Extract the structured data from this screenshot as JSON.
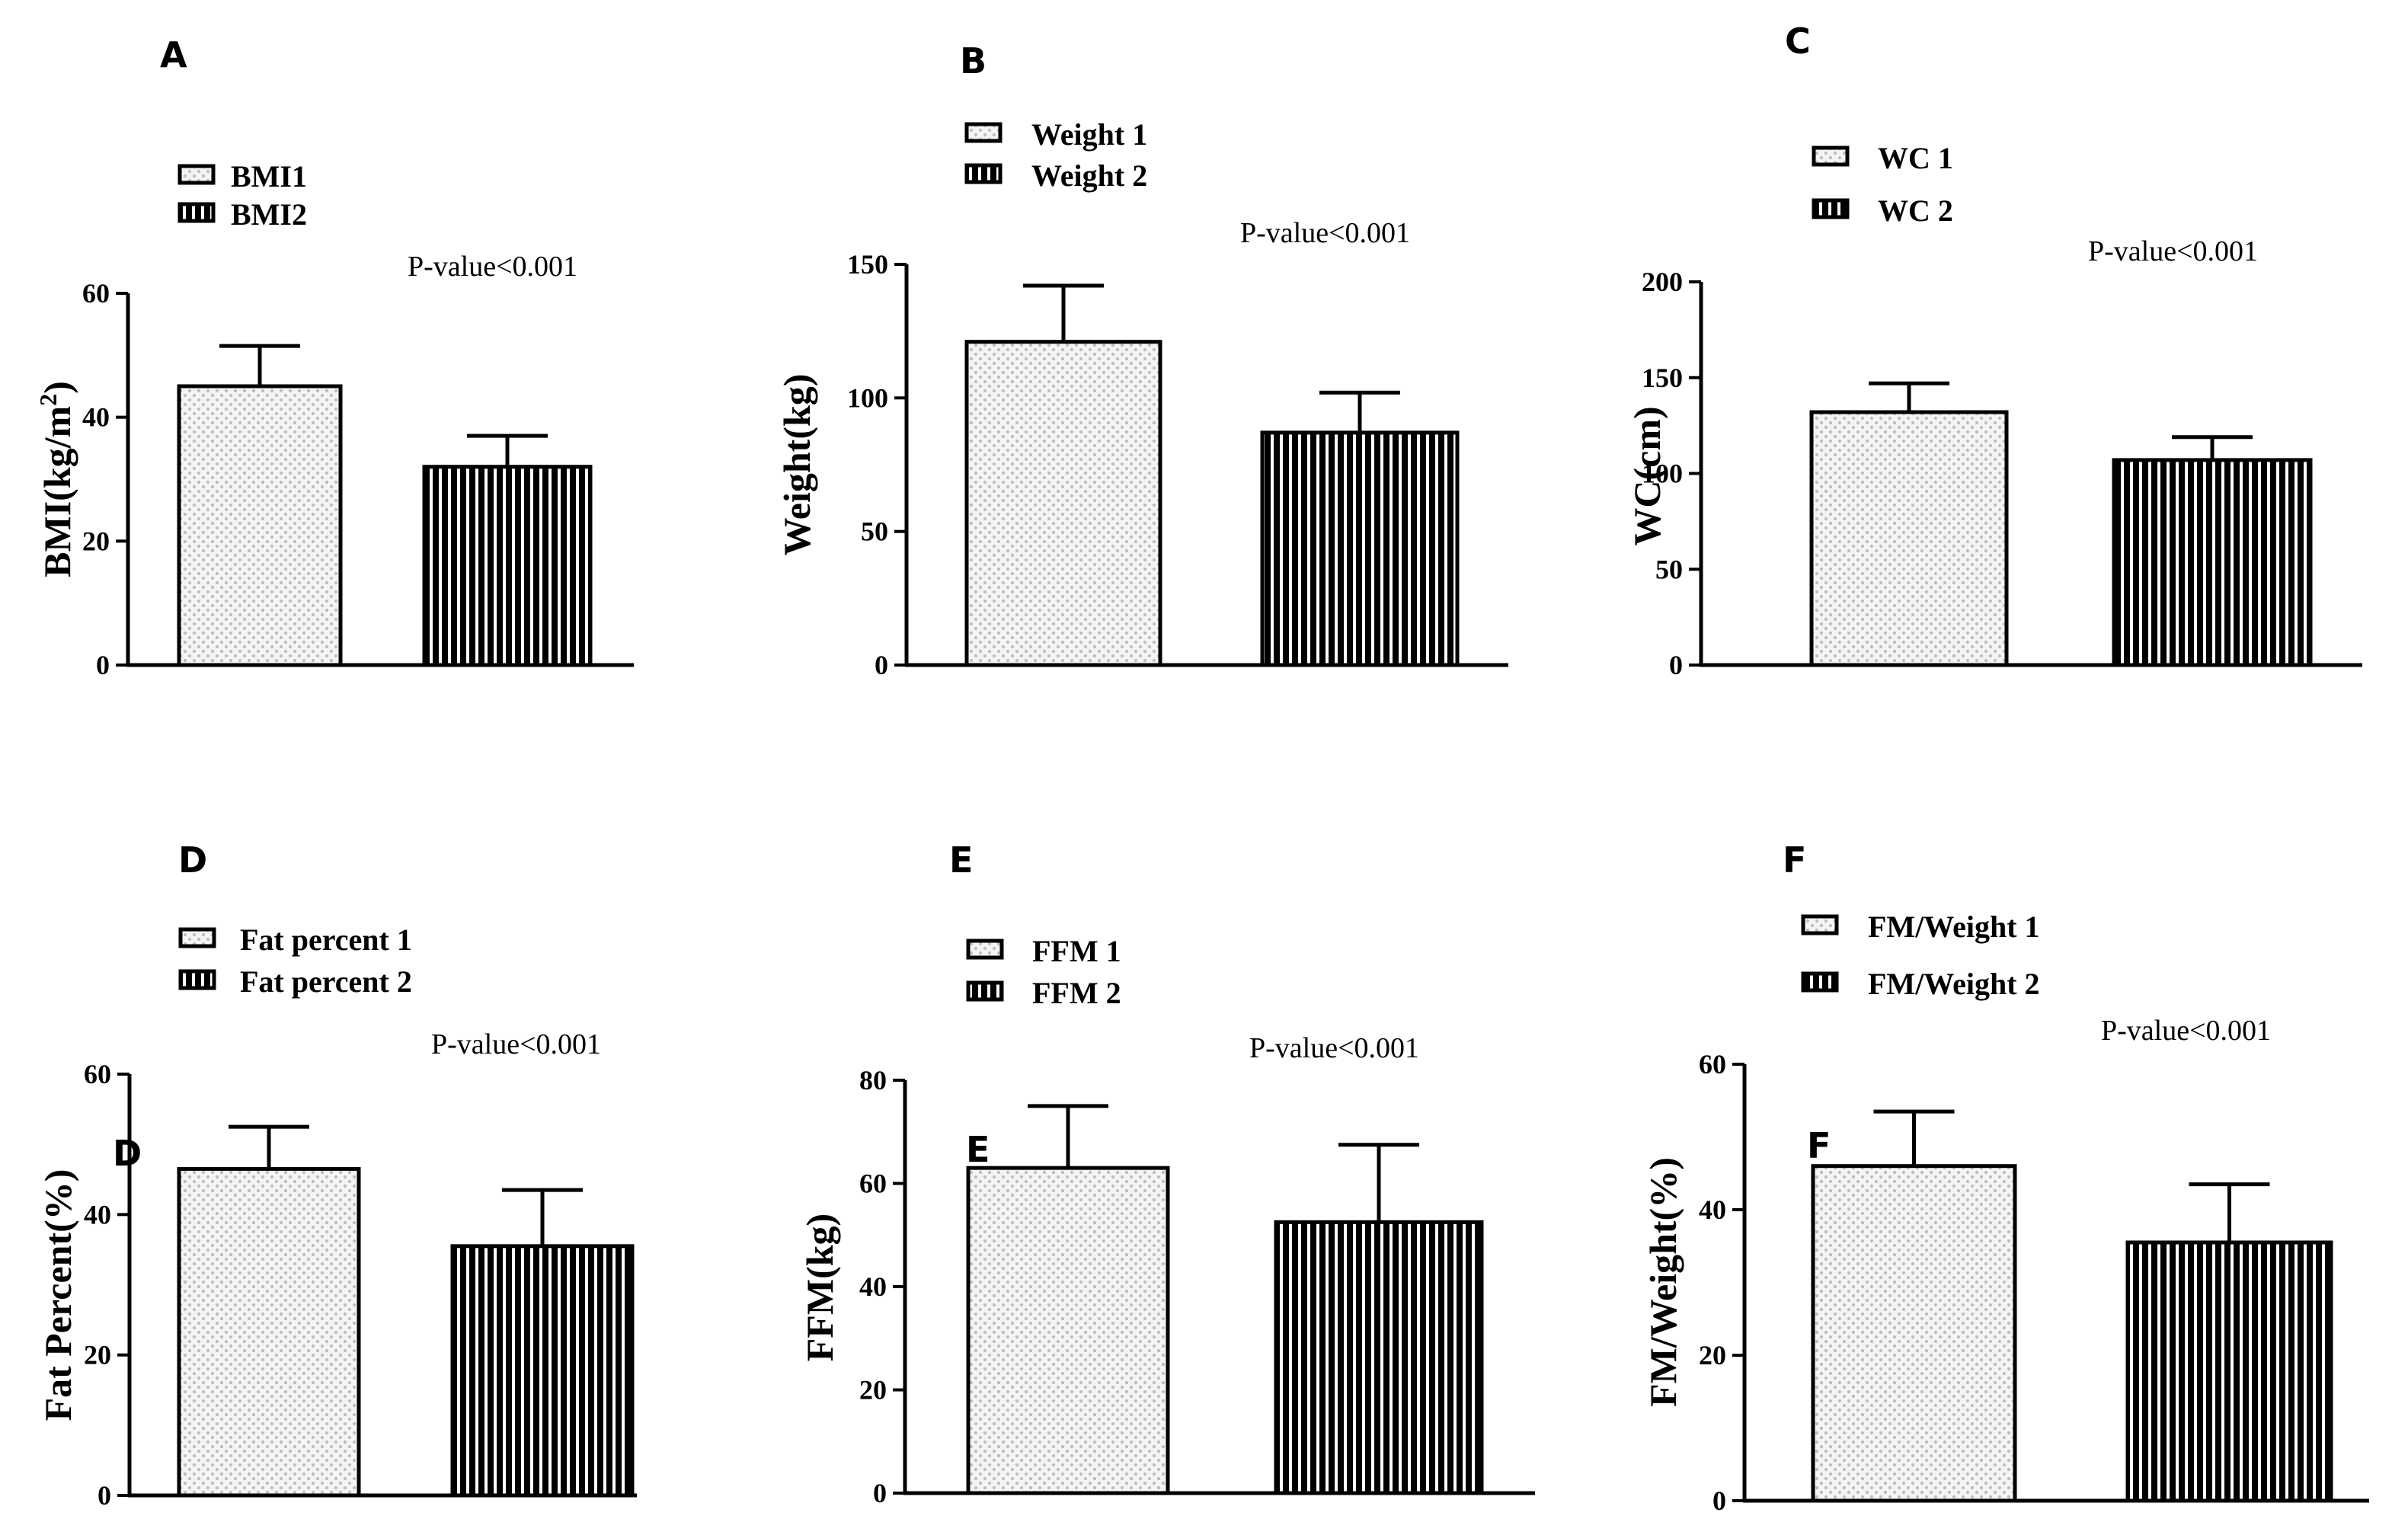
{
  "colors": {
    "ink": "#000000",
    "bar_light_bg": "#f4f4f4",
    "bar_light_dot": "#bdbdbd"
  },
  "chart_data": [
    {
      "type": "bar",
      "panel_label": "A",
      "ylabel": "BMI(kg/m",
      "ylabel_sup": "2",
      "ylabel_end": ")",
      "annotation": "P-value<0.001",
      "categories": [
        "BMI1",
        "BMI2"
      ],
      "values": [
        45,
        32
      ],
      "errors": [
        6.5,
        5
      ],
      "ylim": [
        0,
        60
      ],
      "yticks": [
        0,
        20,
        40,
        60
      ],
      "inner_label": ""
    },
    {
      "type": "bar",
      "panel_label": "B",
      "ylabel": "Weight(kg)",
      "annotation": "P-value<0.001",
      "categories": [
        "Weight 1",
        "Weight 2"
      ],
      "values": [
        121,
        87
      ],
      "errors": [
        21,
        15
      ],
      "ylim": [
        0,
        150
      ],
      "yticks": [
        0,
        50,
        100,
        150
      ],
      "inner_label": ""
    },
    {
      "type": "bar",
      "panel_label": "C",
      "ylabel": "WC(cm)",
      "annotation": "P-value<0.001",
      "categories": [
        "WC 1",
        "WC 2"
      ],
      "values": [
        132,
        107
      ],
      "errors": [
        15,
        12
      ],
      "ylim": [
        0,
        200
      ],
      "yticks": [
        0,
        50,
        100,
        150,
        200
      ],
      "inner_label": ""
    },
    {
      "type": "bar",
      "panel_label": "D",
      "ylabel": "Fat Percent(%)",
      "annotation": "P-value<0.001",
      "categories": [
        "Fat percent 1",
        "Fat percent 2"
      ],
      "values": [
        46.5,
        35.5
      ],
      "errors": [
        6,
        8
      ],
      "ylim": [
        0,
        60
      ],
      "yticks": [
        0,
        20,
        40,
        60
      ],
      "inner_label": "D"
    },
    {
      "type": "bar",
      "panel_label": "E",
      "ylabel": "FFM(kg)",
      "annotation": "P-value<0.001",
      "categories": [
        "FFM 1",
        "FFM 2"
      ],
      "values": [
        63,
        52.5
      ],
      "errors": [
        12,
        15
      ],
      "ylim": [
        0,
        80
      ],
      "yticks": [
        0,
        20,
        40,
        60,
        80
      ],
      "inner_label": "E"
    },
    {
      "type": "bar",
      "panel_label": "F",
      "ylabel": "FM/Weight(%)",
      "annotation": "P-value<0.001",
      "categories": [
        "FM/Weight 1",
        "FM/Weight 2"
      ],
      "values": [
        46,
        35.5
      ],
      "errors": [
        7.5,
        8
      ],
      "ylim": [
        0,
        60
      ],
      "yticks": [
        0,
        20,
        40,
        60
      ],
      "inner_label": "F"
    }
  ]
}
